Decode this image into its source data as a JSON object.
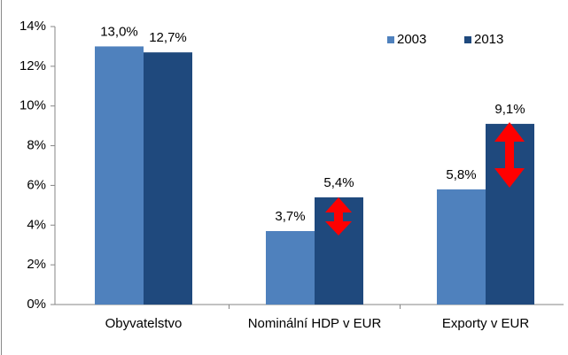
{
  "chart_data": {
    "type": "bar",
    "categories": [
      "Obyvatelstvo",
      "Nominální HDP v EUR",
      "Exporty v EUR"
    ],
    "series": [
      {
        "name": "2003",
        "color": "#4f81bd",
        "values": [
          13.0,
          3.7,
          5.8
        ],
        "value_labels": [
          "13,0%",
          "3,7%",
          "5,8%"
        ]
      },
      {
        "name": "2013",
        "color": "#1f497d",
        "values": [
          12.7,
          5.4,
          9.1
        ],
        "value_labels": [
          "12,7%",
          "5,4%",
          "9,1%"
        ]
      }
    ],
    "ylim": [
      0,
      14
    ],
    "yticks": [
      {
        "value": 0,
        "label": "0%"
      },
      {
        "value": 2,
        "label": "2%"
      },
      {
        "value": 4,
        "label": "4%"
      },
      {
        "value": 6,
        "label": "6%"
      },
      {
        "value": 8,
        "label": "8%"
      },
      {
        "value": 10,
        "label": "10%"
      },
      {
        "value": 12,
        "label": "12%"
      },
      {
        "value": 14,
        "label": "14%"
      }
    ],
    "legend": "top-right"
  }
}
